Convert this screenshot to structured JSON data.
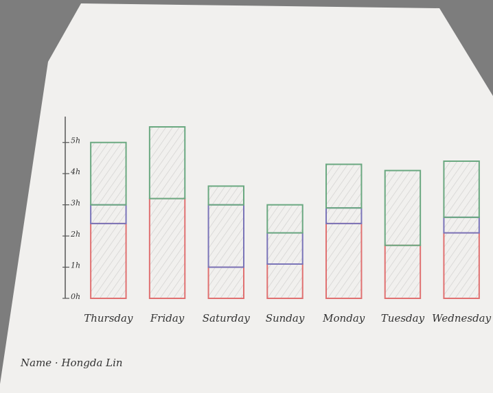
{
  "chart_data": {
    "type": "bar",
    "stacked": true,
    "categories": [
      "Thursday",
      "Friday",
      "Saturday",
      "Sunday",
      "Monday",
      "Tuesday",
      "Wednesday"
    ],
    "series": [
      {
        "color": "#e07070",
        "values": [
          2.4,
          3.2,
          1,
          1.1,
          2.4,
          1.7,
          2.1
        ]
      },
      {
        "color": "#7a74b8",
        "values": [
          0.6,
          0,
          2,
          1,
          0.5,
          0,
          0.5
        ]
      },
      {
        "color": "#6aa880",
        "values": [
          2,
          2.3,
          0.6,
          0.9,
          1.4,
          2.4,
          1.8
        ]
      }
    ],
    "ylim": [
      0,
      5.5
    ],
    "yticks": [
      {
        "value": 0,
        "label": "0h"
      },
      {
        "value": 1,
        "label": "1h"
      },
      {
        "value": 2,
        "label": "2h"
      },
      {
        "value": 3,
        "label": "3h"
      },
      {
        "value": 4,
        "label": "4h"
      },
      {
        "value": 5,
        "label": "5h"
      }
    ],
    "note": "Name · Hongda Lin"
  }
}
